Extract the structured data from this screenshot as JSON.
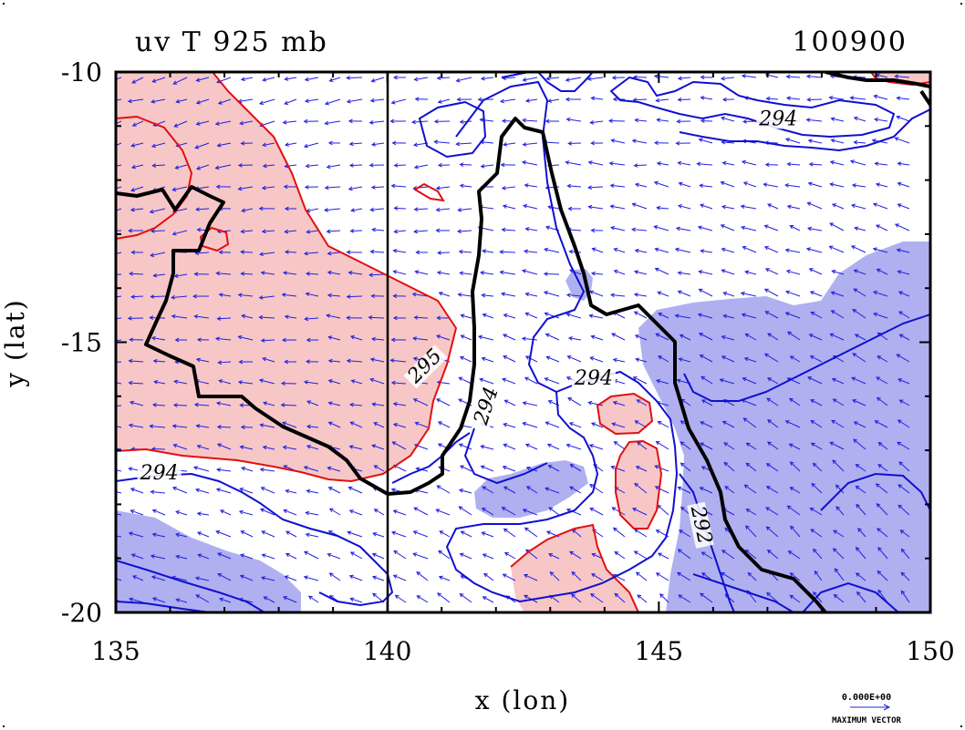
{
  "header": {
    "left_title": "uv T 925 mb",
    "right_title": "100900"
  },
  "footer": {
    "vector_value": "0.000E+00",
    "vector_label": "MAXIMUM VECTOR"
  },
  "chart_data": {
    "type": "contour",
    "title": "uv T 925 mb",
    "subtitle": "100900",
    "xlabel": "x (lon)",
    "ylabel": "y (lat)",
    "xlim": [
      135,
      150
    ],
    "ylim": [
      -20,
      -10
    ],
    "x_ticks": [
      135,
      140,
      145,
      150
    ],
    "y_ticks": [
      -10,
      -15,
      -20
    ],
    "x_tick_labels": [
      "135",
      "140",
      "145",
      "150"
    ],
    "y_tick_labels": [
      "-10",
      "-15",
      "-20"
    ],
    "grid": false,
    "contour_labels": [
      {
        "text": "294",
        "lon": 147.2,
        "lat": -10.95
      },
      {
        "text": "295",
        "lon": 140.75,
        "lat": -15.5
      },
      {
        "text": "294",
        "lon": 141.9,
        "lat": -16.2
      },
      {
        "text": "294",
        "lon": 143.8,
        "lat": -15.75
      },
      {
        "text": "294",
        "lon": 135.8,
        "lat": -17.5
      },
      {
        "text": "292",
        "lon": 145.7,
        "lat": -18.4
      }
    ],
    "colors": {
      "warm_fill": "#f7c7c7",
      "cool_fill": "#b0b0f0",
      "warm_line": "#e01010",
      "cool_line": "#1010d0",
      "vector": "#2020e0",
      "coast": "#000000"
    }
  }
}
